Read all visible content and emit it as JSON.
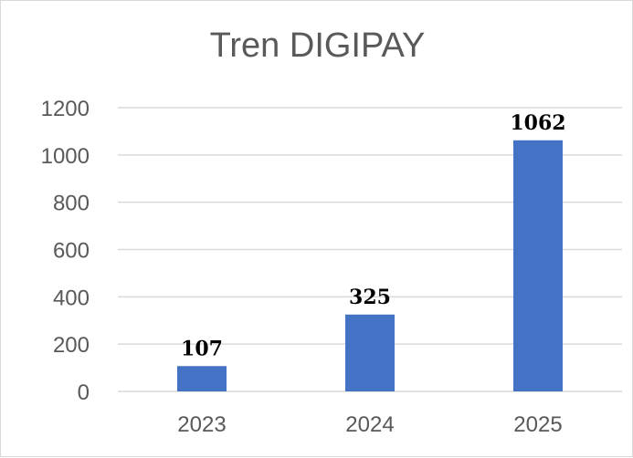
{
  "chart_data": {
    "type": "bar",
    "title": "Tren DIGIPAY",
    "categories": [
      "2023",
      "2024",
      "2025"
    ],
    "values": [
      107,
      325,
      1062
    ],
    "data_labels": [
      "107",
      "325",
      "1062"
    ],
    "y_ticks": [
      "0",
      "200",
      "400",
      "600",
      "800",
      "1000",
      "1200"
    ],
    "ylim": [
      0,
      1200
    ],
    "grid": true,
    "legend": "none",
    "colors": {
      "bar": "#4472C4",
      "grid": "#d9d9d9",
      "axis_text": "#595959"
    }
  }
}
